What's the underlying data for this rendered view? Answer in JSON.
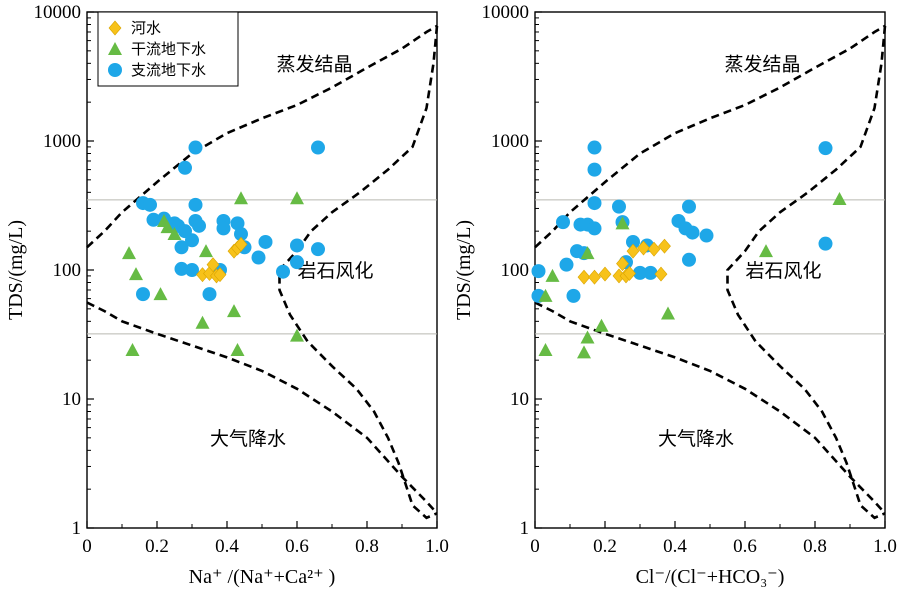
{
  "chart_data": [
    {
      "type": "scatter",
      "title": "",
      "xlabel": "Na⁺ /(Na⁺+Ca²⁺ )",
      "ylabel": "TDS/(mg/L)",
      "xlim": [
        0,
        1
      ],
      "ylim": [
        1,
        10000
      ],
      "yscale": "log",
      "x_ticks": [
        "0",
        "0.2",
        "0.4",
        "0.6",
        "0.8",
        "1.0"
      ],
      "y_ticks": [
        "1",
        "10",
        "100",
        "1000",
        "10000"
      ],
      "grid": false,
      "legend_position": "top-left",
      "zone_labels": [
        "蒸发结晶",
        "岩石风化",
        "大气降水"
      ],
      "series": [
        {
          "name": "河水",
          "marker": "diamond",
          "color": "#F7C21A",
          "points": [
            [
              0.33,
              92
            ],
            [
              0.35,
              94
            ],
            [
              0.37,
              90
            ],
            [
              0.38,
              92
            ],
            [
              0.36,
              110
            ],
            [
              0.42,
              140
            ],
            [
              0.43,
              148
            ],
            [
              0.44,
              158
            ]
          ]
        },
        {
          "name": "干流地下水",
          "marker": "triangle",
          "color": "#66BB44",
          "points": [
            [
              0.12,
              135
            ],
            [
              0.14,
              93
            ],
            [
              0.13,
              24
            ],
            [
              0.21,
              65
            ],
            [
              0.22,
              240
            ],
            [
              0.23,
              215
            ],
            [
              0.25,
              190
            ],
            [
              0.34,
              140
            ],
            [
              0.33,
              39
            ],
            [
              0.42,
              48
            ],
            [
              0.43,
              24
            ],
            [
              0.44,
              360
            ],
            [
              0.6,
              360
            ],
            [
              0.6,
              31
            ]
          ]
        },
        {
          "name": "支流地下水",
          "marker": "circle",
          "color": "#1EA7E8",
          "points": [
            [
              0.16,
              330
            ],
            [
              0.18,
              320
            ],
            [
              0.19,
              245
            ],
            [
              0.22,
              250
            ],
            [
              0.25,
              230
            ],
            [
              0.26,
              220
            ],
            [
              0.27,
              150
            ],
            [
              0.27,
              102
            ],
            [
              0.28,
              200
            ],
            [
              0.28,
              620
            ],
            [
              0.3,
              170
            ],
            [
              0.3,
              100
            ],
            [
              0.31,
              890
            ],
            [
              0.31,
              320
            ],
            [
              0.31,
              240
            ],
            [
              0.32,
              220
            ],
            [
              0.35,
              65
            ],
            [
              0.38,
              100
            ],
            [
              0.39,
              240
            ],
            [
              0.39,
              210
            ],
            [
              0.43,
              230
            ],
            [
              0.44,
              190
            ],
            [
              0.45,
              150
            ],
            [
              0.49,
              125
            ],
            [
              0.51,
              165
            ],
            [
              0.56,
              97
            ],
            [
              0.6,
              155
            ],
            [
              0.6,
              115
            ],
            [
              0.66,
              145
            ],
            [
              0.66,
              890
            ],
            [
              0.16,
              65
            ]
          ]
        }
      ]
    },
    {
      "type": "scatter",
      "title": "",
      "xlabel": "Cl⁻/(Cl⁻+HCO₃⁻)",
      "ylabel": "TDS/(mg/L)",
      "xlim": [
        0,
        1
      ],
      "ylim": [
        1,
        10000
      ],
      "yscale": "log",
      "x_ticks": [
        "0",
        "0.2",
        "0.4",
        "0.6",
        "0.8",
        "1.0"
      ],
      "y_ticks": [
        "1",
        "10",
        "100",
        "1000",
        "10000"
      ],
      "grid": false,
      "zone_labels": [
        "蒸发结晶",
        "岩石风化",
        "大气降水"
      ],
      "series": [
        {
          "name": "河水",
          "marker": "diamond",
          "color": "#F7C21A",
          "points": [
            [
              0.14,
              88
            ],
            [
              0.17,
              88
            ],
            [
              0.2,
              93
            ],
            [
              0.24,
              90
            ],
            [
              0.25,
              112
            ],
            [
              0.26,
              90
            ],
            [
              0.28,
              140
            ],
            [
              0.31,
              148
            ],
            [
              0.34,
              145
            ],
            [
              0.37,
              153
            ],
            [
              0.36,
              93
            ],
            [
              0.27,
              94
            ]
          ]
        },
        {
          "name": "干流地下水",
          "marker": "triangle",
          "color": "#66BB44",
          "points": [
            [
              0.03,
              63
            ],
            [
              0.05,
              90
            ],
            [
              0.03,
              24
            ],
            [
              0.14,
              23
            ],
            [
              0.15,
              30
            ],
            [
              0.19,
              37
            ],
            [
              0.15,
              135
            ],
            [
              0.25,
              230
            ],
            [
              0.38,
              46
            ],
            [
              0.66,
              140
            ],
            [
              0.87,
              355
            ]
          ]
        },
        {
          "name": "支流地下水",
          "marker": "circle",
          "color": "#1EA7E8",
          "points": [
            [
              0.01,
              98
            ],
            [
              0.01,
              63
            ],
            [
              0.08,
              235
            ],
            [
              0.09,
              110
            ],
            [
              0.11,
              63
            ],
            [
              0.12,
              140
            ],
            [
              0.13,
              225
            ],
            [
              0.15,
              225
            ],
            [
              0.14,
              135
            ],
            [
              0.17,
              890
            ],
            [
              0.17,
              600
            ],
            [
              0.17,
              330
            ],
            [
              0.17,
              210
            ],
            [
              0.24,
              310
            ],
            [
              0.25,
              235
            ],
            [
              0.26,
              115
            ],
            [
              0.28,
              165
            ],
            [
              0.3,
              95
            ],
            [
              0.32,
              155
            ],
            [
              0.33,
              95
            ],
            [
              0.41,
              240
            ],
            [
              0.43,
              210
            ],
            [
              0.44,
              310
            ],
            [
              0.44,
              120
            ],
            [
              0.45,
              195
            ],
            [
              0.49,
              185
            ],
            [
              0.83,
              880
            ],
            [
              0.83,
              160
            ]
          ]
        }
      ]
    }
  ]
}
